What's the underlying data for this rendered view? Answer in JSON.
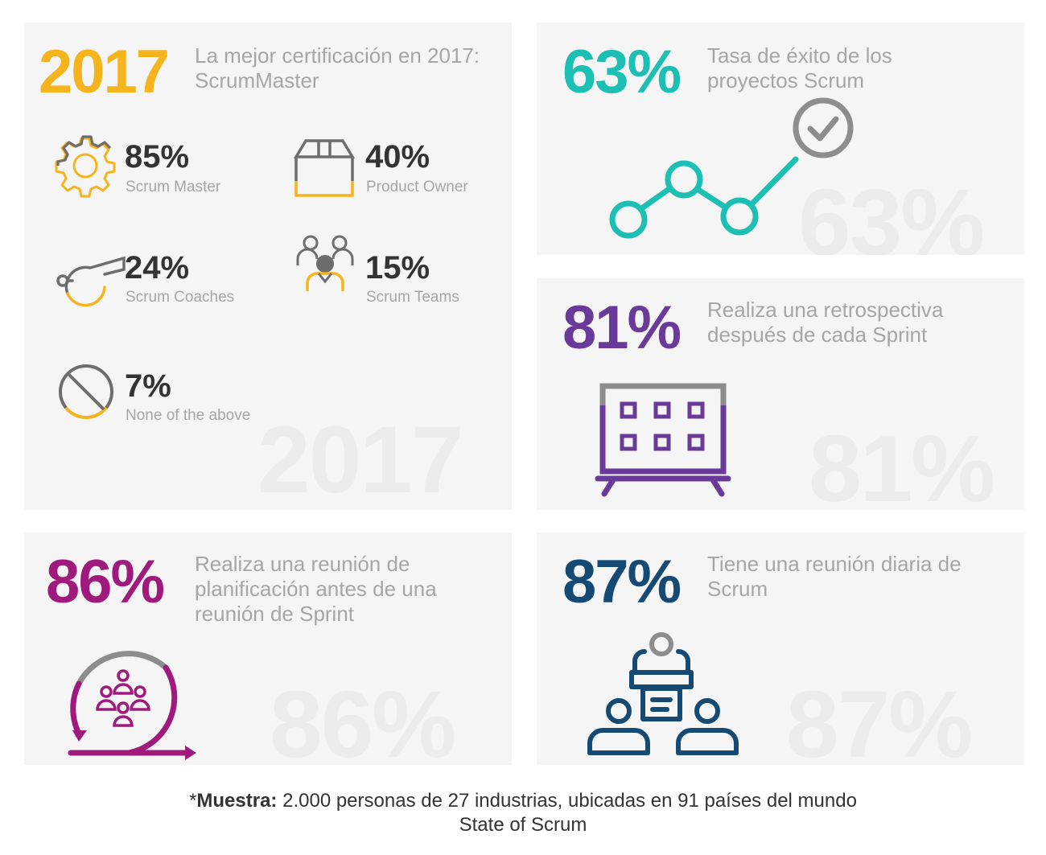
{
  "panels": {
    "cert": {
      "headline": "2017",
      "description": "La mejor certificación en 2017: ScrumMaster",
      "watermark": "2017",
      "accent": "#f5b31c",
      "items": [
        {
          "value": "85%",
          "label": "Scrum Master",
          "icon": "gear-icon"
        },
        {
          "value": "40%",
          "label": "Product Owner",
          "icon": "box-icon"
        },
        {
          "value": "24%",
          "label": "Scrum Coaches",
          "icon": "whistle-icon"
        },
        {
          "value": "15%",
          "label": "Scrum Teams",
          "icon": "team-icon"
        },
        {
          "value": "7%",
          "label": "None of the above",
          "icon": "prohibited-icon"
        }
      ]
    },
    "success": {
      "headline": "63%",
      "description": "Tasa de éxito de los proyectos Scrum",
      "watermark": "63%",
      "accent": "#1bbfb4",
      "icon": "growth-line-check-icon"
    },
    "retro": {
      "headline": "81%",
      "description": "Realiza una retrospectiva después de cada Sprint",
      "watermark": "81%",
      "accent": "#6a3a9a",
      "icon": "board-icon"
    },
    "planning": {
      "headline": "86%",
      "description": "Realiza una reunión de planificación antes de una reunión de Sprint",
      "watermark": "86%",
      "accent": "#a01a7d",
      "icon": "cycle-people-icon"
    },
    "daily": {
      "headline": "87%",
      "description": "Tiene una reunión diaria de Scrum",
      "watermark": "87%",
      "accent": "#154a74",
      "icon": "meeting-icon"
    }
  },
  "footer": {
    "prefix": "*",
    "bold": "Muestra:",
    "text": " 2.000 personas de 27 industrias, ubicadas en 91 países del mundo",
    "source": "State of Scrum"
  }
}
